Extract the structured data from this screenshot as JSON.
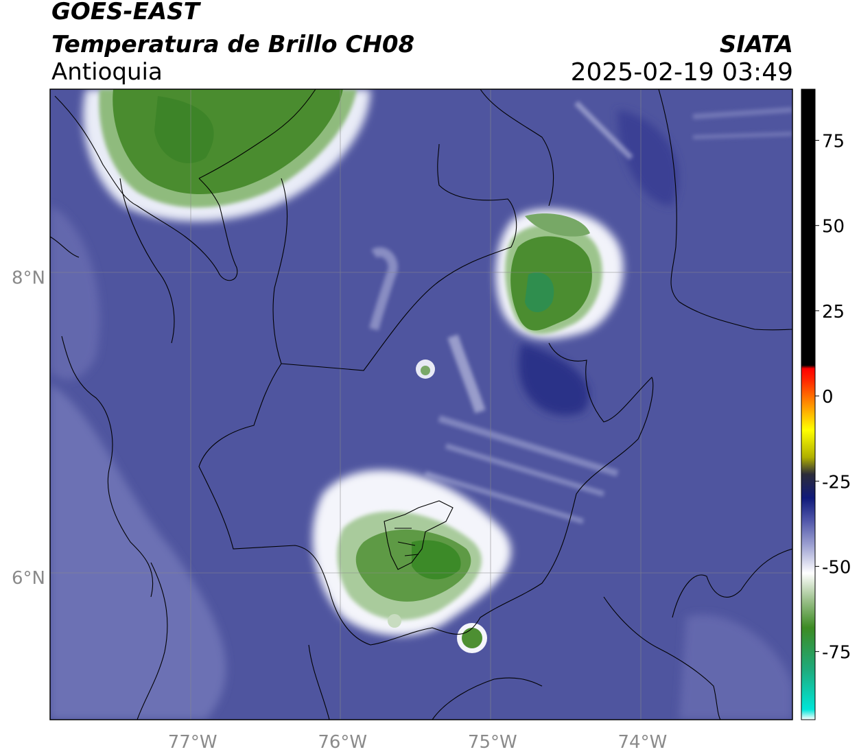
{
  "header": {
    "satellite": "GOES-EAST",
    "product": "Temperatura de Brillo CH08",
    "region": "Antioquia",
    "organization": "SIATA",
    "timestamp": "2025-02-19 03:49"
  },
  "map": {
    "lon_range": [
      -77.95,
      -73.0
    ],
    "lat_range": [
      5.05,
      9.25
    ],
    "lon_ticks": [
      "77°W",
      "76°W",
      "75°W",
      "74°W"
    ],
    "lon_tick_values": [
      -77,
      -76,
      -75,
      -74
    ],
    "lat_ticks": [
      "8°N",
      "6°N"
    ],
    "lat_tick_values": [
      8,
      6
    ],
    "background_color": "#4f559f",
    "cold_cloud_color": "#3a8a2a"
  },
  "colorbar": {
    "range": [
      -95,
      90
    ],
    "tick_labels": [
      "75",
      "50",
      "25",
      "0",
      "-25",
      "-50",
      "-75"
    ],
    "tick_values": [
      75,
      50,
      25,
      0,
      -25,
      -50,
      -75
    ],
    "stops": [
      {
        "value": -95,
        "color": "#ffffff"
      },
      {
        "value": -92,
        "color": "#00e5d8"
      },
      {
        "value": -80,
        "color": "#1faa7a"
      },
      {
        "value": -68,
        "color": "#3c8b23"
      },
      {
        "value": -60,
        "color": "#9bc08a"
      },
      {
        "value": -52,
        "color": "#ffffff"
      },
      {
        "value": -44,
        "color": "#9fa3d3"
      },
      {
        "value": -36,
        "color": "#4b51a6"
      },
      {
        "value": -30,
        "color": "#101a7a"
      },
      {
        "value": -23,
        "color": "#2c2c3a"
      },
      {
        "value": -18,
        "color": "#b0b000"
      },
      {
        "value": -10,
        "color": "#ffff00"
      },
      {
        "value": -3,
        "color": "#ff9900"
      },
      {
        "value": 5,
        "color": "#ff2200"
      },
      {
        "value": 8,
        "color": "#ff0000"
      },
      {
        "value": 9,
        "color": "#000000"
      },
      {
        "value": 90,
        "color": "#000000"
      }
    ]
  }
}
